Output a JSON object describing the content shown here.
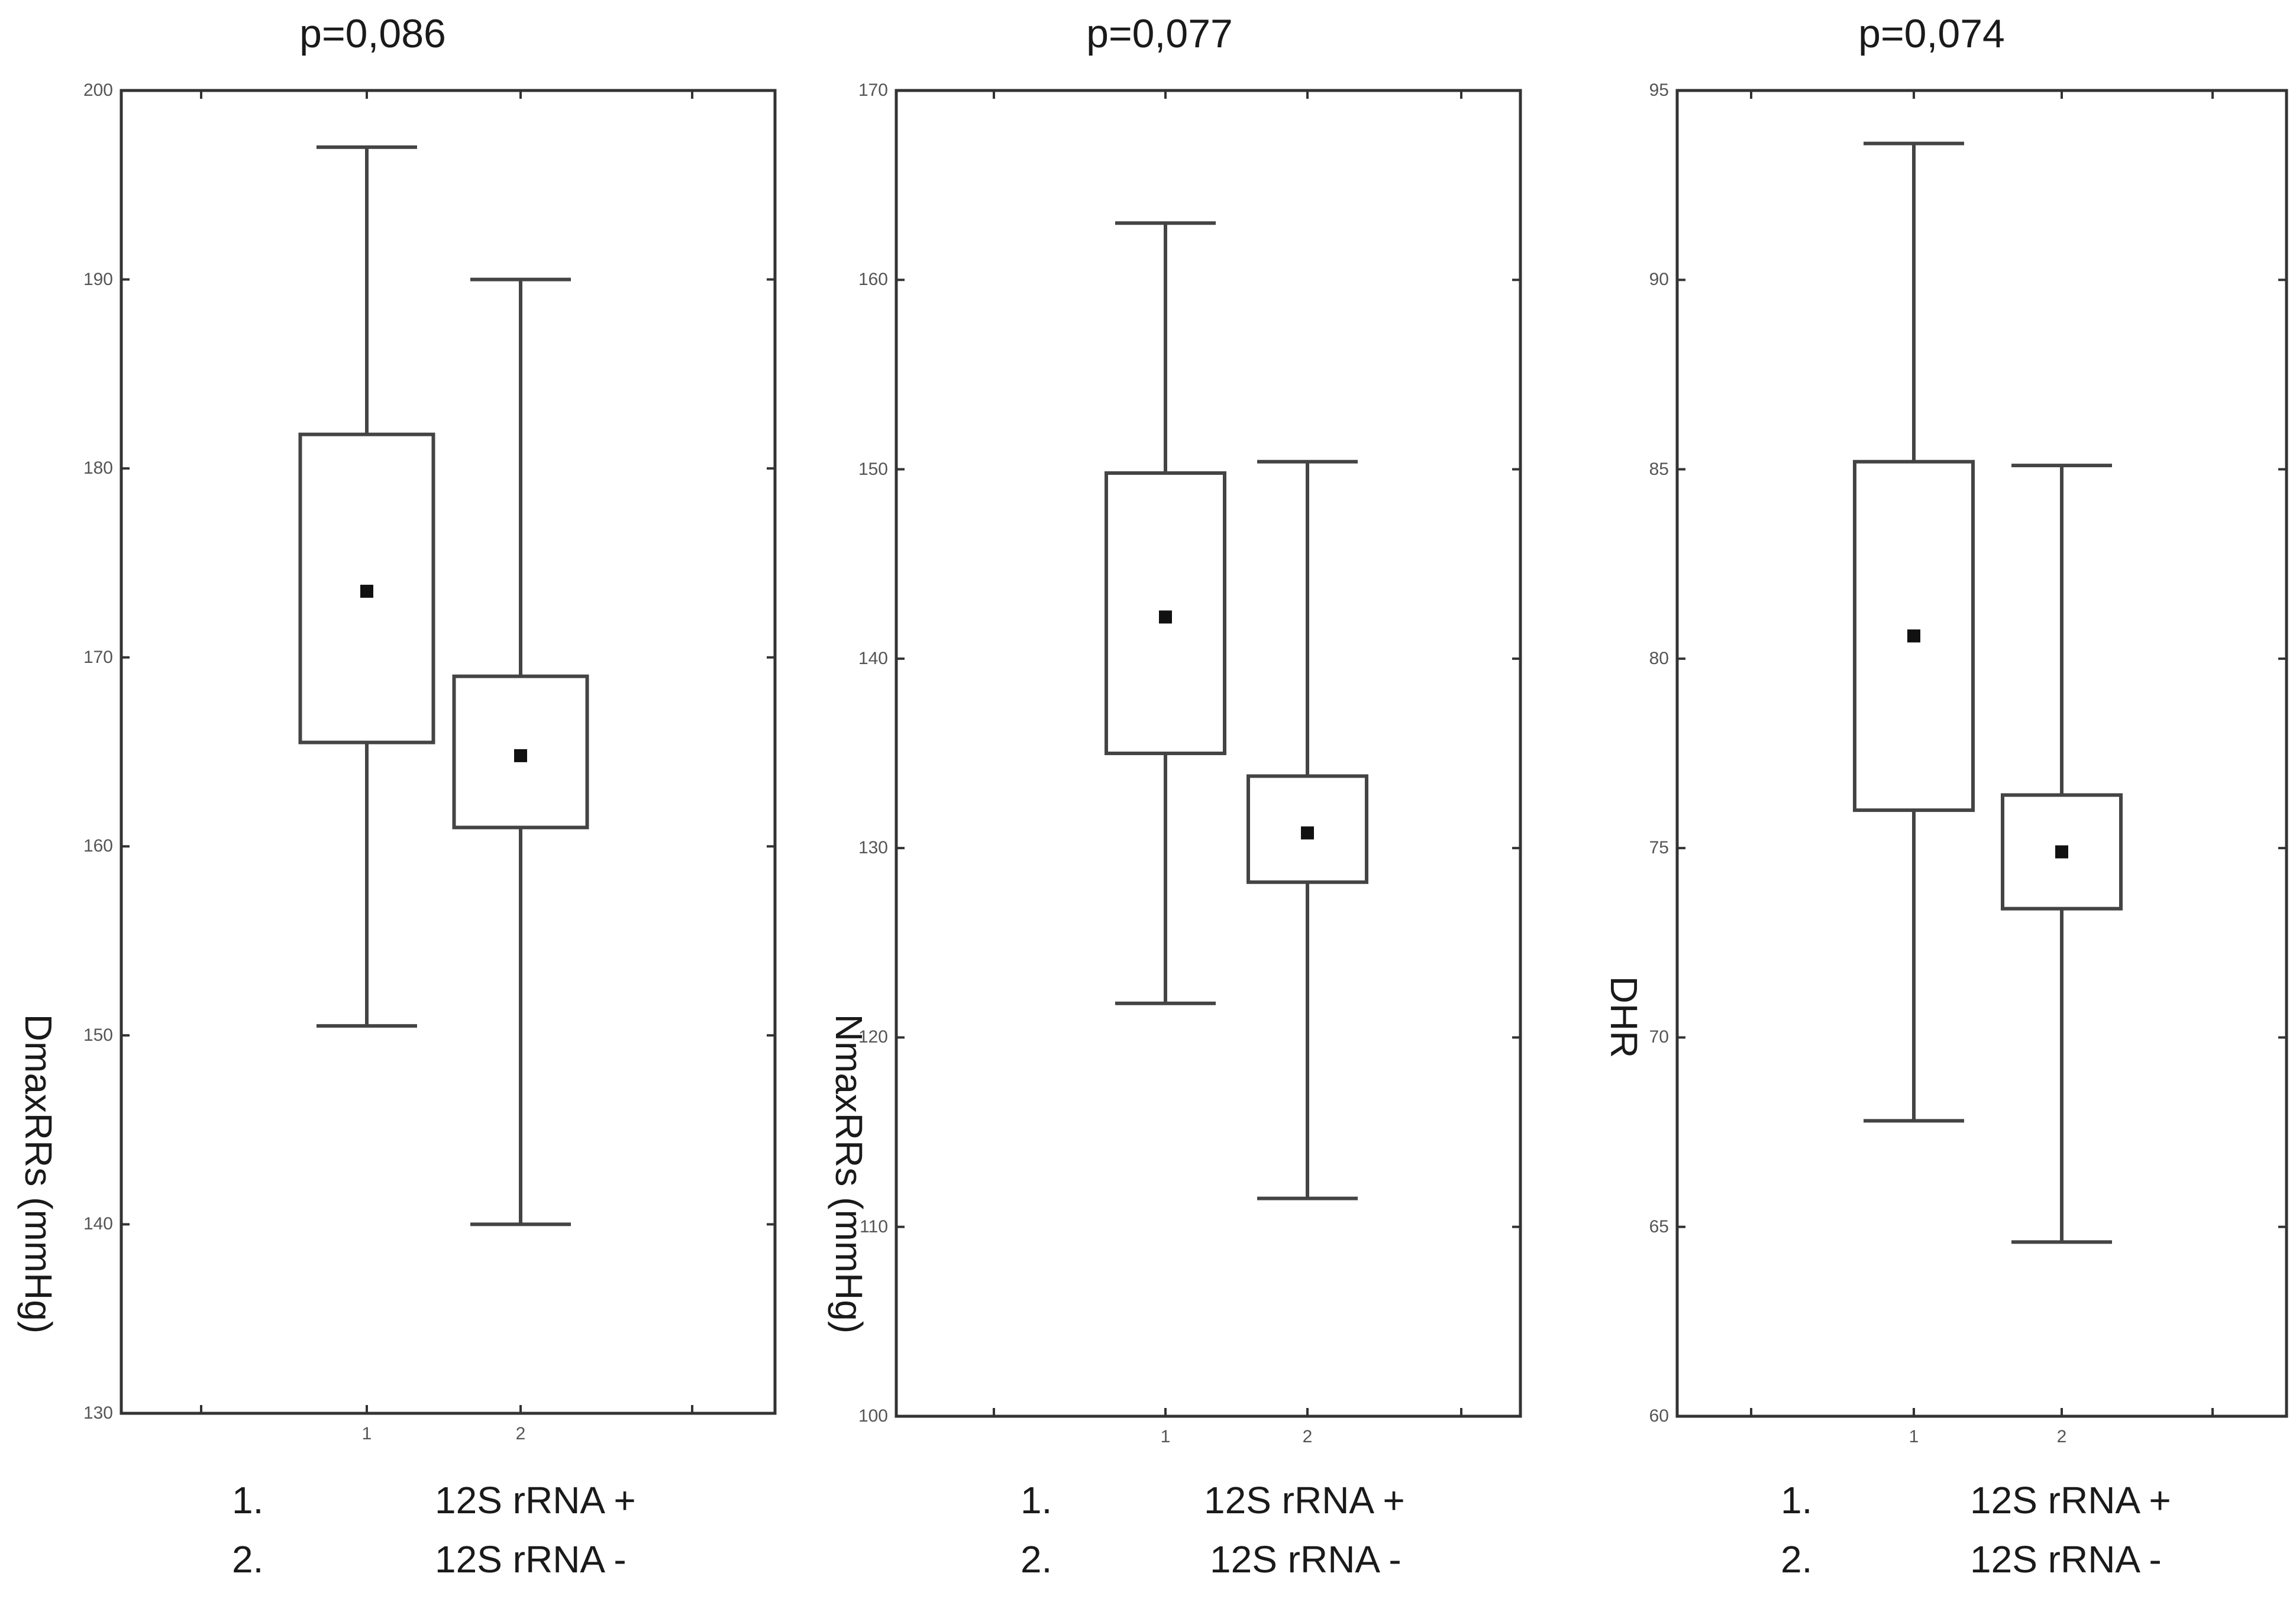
{
  "legend": {
    "items": [
      {
        "number": "1.",
        "label": "12S rRNA +"
      },
      {
        "number": "2.",
        "label": "12S rRNA -"
      }
    ]
  },
  "colors": {
    "frame": "#333333",
    "box": "#444444",
    "background": "#ffffff"
  },
  "chart_data": [
    {
      "type": "box",
      "title": "p=0,086",
      "ylabel": "DmaxRRs (mmHg)",
      "ylim": [
        130,
        200
      ],
      "yticks": [
        "130",
        "140",
        "150",
        "160",
        "170",
        "180",
        "190",
        "200"
      ],
      "categories": [
        "1",
        "2"
      ],
      "boxes": [
        {
          "category": "1",
          "whisker_low": 150.5,
          "q1": 165.5,
          "mean": 173.5,
          "q3": 181.8,
          "whisker_high": 197
        },
        {
          "category": "2",
          "whisker_low": 140,
          "q1": 161,
          "mean": 164.8,
          "q3": 169,
          "whisker_high": 190
        }
      ]
    },
    {
      "type": "box",
      "title": "p=0,077",
      "ylabel": "NmaxRRs (mmHg)",
      "ylim": [
        100,
        170
      ],
      "yticks": [
        "100",
        "110",
        "120",
        "130",
        "140",
        "150",
        "160",
        "170"
      ],
      "categories": [
        "1",
        "2"
      ],
      "boxes": [
        {
          "category": "1",
          "whisker_low": 121.8,
          "q1": 135,
          "mean": 142.2,
          "q3": 149.8,
          "whisker_high": 163
        },
        {
          "category": "2",
          "whisker_low": 111.5,
          "q1": 128.2,
          "mean": 130.8,
          "q3": 133.8,
          "whisker_high": 150.4
        }
      ]
    },
    {
      "type": "box",
      "title": "p=0,074",
      "ylabel": "DHR",
      "ylim": [
        60,
        95
      ],
      "yticks": [
        "60",
        "65",
        "70",
        "75",
        "80",
        "85",
        "90",
        "95"
      ],
      "categories": [
        "1",
        "2"
      ],
      "boxes": [
        {
          "category": "1",
          "whisker_low": 67.8,
          "q1": 76,
          "mean": 80.6,
          "q3": 85.2,
          "whisker_high": 93.6
        },
        {
          "category": "2",
          "whisker_low": 64.6,
          "q1": 73.4,
          "mean": 74.9,
          "q3": 76.4,
          "whisker_high": 85.1
        }
      ]
    }
  ]
}
